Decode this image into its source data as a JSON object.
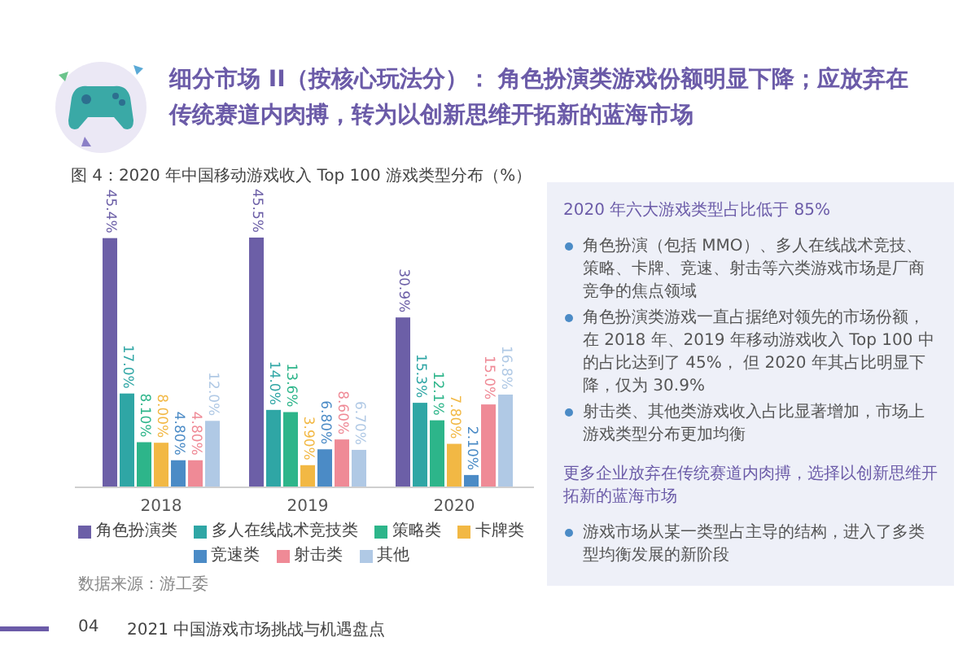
{
  "chart_data": {
    "type": "bar",
    "title": "细分市场 II（按核心玩法分）： 角色扮演类游戏份额明显下降；应放弃在传统赛道内肉搏，转为以创新思维开拓新的蓝海市场",
    "subtitle": "图 4：2020 年中国移动游戏收入 Top 100 游戏类型分布（%）",
    "categories": [
      "2018",
      "2019",
      "2020"
    ],
    "series": [
      {
        "name": "角色扮演类",
        "color": "#6c5fa7",
        "values": [
          45.4,
          45.5,
          30.9
        ],
        "value_labels": [
          "45.4%",
          "45.5%",
          "30.9%"
        ]
      },
      {
        "name": "多人在线战术竞技类",
        "color": "#2fa6a5",
        "values": [
          17.0,
          14.0,
          15.3
        ],
        "value_labels": [
          "17.0%",
          "14.0%",
          "15.3%"
        ]
      },
      {
        "name": "策略类",
        "color": "#2db58a",
        "values": [
          8.1,
          13.6,
          12.1
        ],
        "value_labels": [
          "8.10%",
          "13.6%",
          "12.1%"
        ]
      },
      {
        "name": "卡牌类",
        "color": "#f2b844",
        "values": [
          8.0,
          3.9,
          7.8
        ],
        "value_labels": [
          "8.00%",
          "3.90%",
          "7.80%"
        ]
      },
      {
        "name": "竞速类",
        "color": "#4b8bc6",
        "values": [
          4.8,
          6.8,
          2.1
        ],
        "value_labels": [
          "4.80%",
          "6.80%",
          "2.10%"
        ]
      },
      {
        "name": "射击类",
        "color": "#ef8a96",
        "values": [
          4.8,
          8.6,
          15.0
        ],
        "value_labels": [
          "4.80%",
          "8.60%",
          "15.0%"
        ]
      },
      {
        "name": "其他",
        "color": "#b0c9e5",
        "values": [
          12.0,
          6.7,
          16.8
        ],
        "value_labels": [
          "12.0%",
          "6.70%",
          "16.8%"
        ]
      }
    ],
    "legend": "bottom",
    "annotations": [
      "2020 年六大游戏类型占比低于 85%",
      "角色扮演（包括 MMO）、多人在线战术竞技、策略、卡牌、竞速、射击等六类游戏市场是厂商竞争的焦点领域",
      "角色扮演类游戏一直占据绝对领先的市场份额，在 2018 年、2019 年移动游戏收入 Top 100 中的占比达到了 45%， 但 2020 年其占比明显下降，仅为 30.9%",
      "射击类、其他类游戏收入占比显著增加，市场上游戏类型分布更加均衡",
      "更多企业放弃在传统赛道内肉搏，选择以创新思维开拓新的蓝海市场",
      "游戏市场从某一类型占主导的结构，进入了多类型均衡发展的新阶段",
      "数据来源：游工委",
      "04",
      "2021 中国游戏市场挑战与机遇盘点"
    ]
  }
}
